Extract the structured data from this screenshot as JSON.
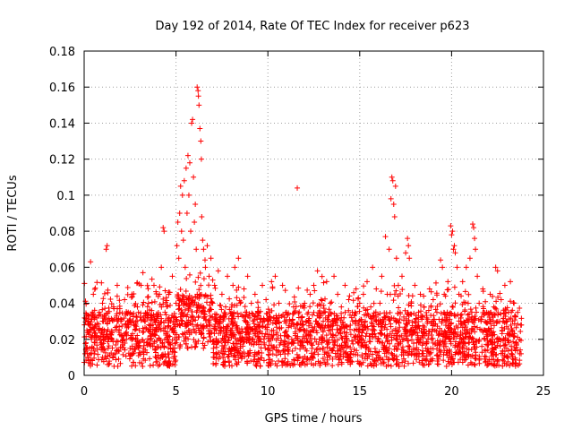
{
  "chart_data": {
    "type": "scatter",
    "title": "Day 192 of 2014, Rate Of TEC Index for receiver p623",
    "xlabel": "GPS time / hours",
    "ylabel": "ROTI / TECUs",
    "xlim": [
      0,
      25
    ],
    "ylim": [
      0,
      0.18
    ],
    "xticks": [
      0,
      5,
      10,
      15,
      20,
      25
    ],
    "xtick_labels": [
      "0",
      "5",
      "10",
      "15",
      "20",
      "25"
    ],
    "yticks": [
      0,
      0.02,
      0.04,
      0.06,
      0.08,
      0.1,
      0.12,
      0.14,
      0.16,
      0.18
    ],
    "ytick_labels": [
      "0",
      "0.02",
      "0.04",
      "0.06",
      "0.08",
      "0.1",
      "0.12",
      "0.14",
      "0.16",
      "0.18"
    ],
    "grid": true,
    "marker": "+",
    "marker_color": "#ff0000",
    "series": [
      {
        "name": "ROTI",
        "points": [
          [
            0.05,
            0.012
          ],
          [
            0.1,
            0.018
          ],
          [
            0.15,
            0.025
          ],
          [
            0.2,
            0.01
          ],
          [
            0.25,
            0.03
          ],
          [
            0.3,
            0.015
          ],
          [
            0.35,
            0.063
          ],
          [
            0.4,
            0.02
          ],
          [
            0.45,
            0.035
          ],
          [
            0.5,
            0.045
          ],
          [
            0.55,
            0.012
          ],
          [
            0.6,
            0.028
          ],
          [
            0.7,
            0.022
          ],
          [
            0.8,
            0.033
          ],
          [
            0.9,
            0.018
          ],
          [
            1.0,
            0.04
          ],
          [
            1.1,
            0.025
          ],
          [
            1.2,
            0.07
          ],
          [
            1.25,
            0.072
          ],
          [
            1.3,
            0.015
          ],
          [
            1.4,
            0.03
          ],
          [
            1.5,
            0.02
          ],
          [
            1.6,
            0.038
          ],
          [
            1.7,
            0.012
          ],
          [
            1.8,
            0.05
          ],
          [
            1.9,
            0.025
          ],
          [
            2.0,
            0.03
          ],
          [
            2.1,
            0.018
          ],
          [
            2.2,
            0.042
          ],
          [
            2.3,
            0.02
          ],
          [
            2.4,
            0.035
          ],
          [
            2.5,
            0.015
          ],
          [
            2.6,
            0.045
          ],
          [
            2.7,
            0.028
          ],
          [
            2.8,
            0.02
          ],
          [
            2.9,
            0.038
          ],
          [
            3.0,
            0.025
          ],
          [
            3.1,
            0.05
          ],
          [
            3.2,
            0.057
          ],
          [
            3.3,
            0.03
          ],
          [
            3.4,
            0.018
          ],
          [
            3.5,
            0.04
          ],
          [
            3.6,
            0.022
          ],
          [
            3.7,
            0.032
          ],
          [
            3.8,
            0.05
          ],
          [
            3.9,
            0.015
          ],
          [
            4.0,
            0.028
          ],
          [
            4.1,
            0.045
          ],
          [
            4.2,
            0.06
          ],
          [
            4.3,
            0.082
          ],
          [
            4.35,
            0.08
          ],
          [
            4.4,
            0.035
          ],
          [
            4.5,
            0.02
          ],
          [
            4.6,
            0.045
          ],
          [
            4.7,
            0.03
          ],
          [
            4.8,
            0.055
          ],
          [
            4.9,
            0.025
          ],
          [
            5.0,
            0.04
          ],
          [
            5.05,
            0.072
          ],
          [
            5.1,
            0.085
          ],
          [
            5.15,
            0.065
          ],
          [
            5.2,
            0.09
          ],
          [
            5.25,
            0.105
          ],
          [
            5.3,
            0.08
          ],
          [
            5.35,
            0.1
          ],
          [
            5.4,
            0.075
          ],
          [
            5.45,
            0.108
          ],
          [
            5.5,
            0.06
          ],
          [
            5.55,
            0.115
          ],
          [
            5.6,
            0.09
          ],
          [
            5.65,
            0.122
          ],
          [
            5.7,
            0.1
          ],
          [
            5.75,
            0.118
          ],
          [
            5.8,
            0.08
          ],
          [
            5.85,
            0.14
          ],
          [
            5.9,
            0.142
          ],
          [
            5.95,
            0.11
          ],
          [
            6.0,
            0.085
          ],
          [
            6.05,
            0.095
          ],
          [
            6.1,
            0.07
          ],
          [
            6.15,
            0.16
          ],
          [
            6.2,
            0.158
          ],
          [
            6.22,
            0.155
          ],
          [
            6.25,
            0.15
          ],
          [
            6.3,
            0.137
          ],
          [
            6.35,
            0.13
          ],
          [
            6.38,
            0.12
          ],
          [
            6.4,
            0.088
          ],
          [
            6.45,
            0.075
          ],
          [
            6.5,
            0.07
          ],
          [
            6.6,
            0.06
          ],
          [
            6.7,
            0.072
          ],
          [
            6.8,
            0.055
          ],
          [
            6.9,
            0.065
          ],
          [
            7.0,
            0.04
          ],
          [
            7.1,
            0.05
          ],
          [
            7.2,
            0.03
          ],
          [
            7.3,
            0.058
          ],
          [
            7.4,
            0.025
          ],
          [
            7.5,
            0.045
          ],
          [
            7.6,
            0.02
          ],
          [
            7.7,
            0.038
          ],
          [
            7.8,
            0.055
          ],
          [
            7.9,
            0.015
          ],
          [
            8.0,
            0.03
          ],
          [
            8.1,
            0.05
          ],
          [
            8.2,
            0.06
          ],
          [
            8.3,
            0.025
          ],
          [
            8.4,
            0.065
          ],
          [
            8.5,
            0.04
          ],
          [
            8.6,
            0.02
          ],
          [
            8.7,
            0.048
          ],
          [
            8.8,
            0.03
          ],
          [
            8.9,
            0.055
          ],
          [
            9.0,
            0.018
          ],
          [
            9.1,
            0.04
          ],
          [
            9.2,
            0.025
          ],
          [
            9.3,
            0.045
          ],
          [
            9.4,
            0.012
          ],
          [
            9.5,
            0.035
          ],
          [
            9.6,
            0.02
          ],
          [
            9.7,
            0.05
          ],
          [
            9.8,
            0.03
          ],
          [
            9.9,
            0.042
          ],
          [
            10.0,
            0.015
          ],
          [
            10.1,
            0.035
          ],
          [
            10.2,
            0.052
          ],
          [
            10.3,
            0.025
          ],
          [
            10.4,
            0.055
          ],
          [
            10.5,
            0.03
          ],
          [
            10.6,
            0.04
          ],
          [
            10.7,
            0.018
          ],
          [
            10.8,
            0.05
          ],
          [
            10.9,
            0.022
          ],
          [
            11.0,
            0.035
          ],
          [
            11.1,
            0.012
          ],
          [
            11.2,
            0.03
          ],
          [
            11.3,
            0.02
          ],
          [
            11.4,
            0.038
          ],
          [
            11.5,
            0.015
          ],
          [
            11.6,
            0.104
          ],
          [
            11.7,
            0.025
          ],
          [
            11.8,
            0.032
          ],
          [
            11.9,
            0.018
          ],
          [
            12.0,
            0.04
          ],
          [
            12.1,
            0.022
          ],
          [
            12.2,
            0.035
          ],
          [
            12.3,
            0.045
          ],
          [
            12.4,
            0.015
          ],
          [
            12.5,
            0.05
          ],
          [
            12.6,
            0.03
          ],
          [
            12.7,
            0.058
          ],
          [
            12.8,
            0.02
          ],
          [
            12.9,
            0.042
          ],
          [
            13.0,
            0.025
          ],
          [
            13.1,
            0.035
          ],
          [
            13.2,
            0.052
          ],
          [
            13.3,
            0.018
          ],
          [
            13.4,
            0.04
          ],
          [
            13.5,
            0.03
          ],
          [
            13.6,
            0.055
          ],
          [
            13.7,
            0.022
          ],
          [
            13.8,
            0.045
          ],
          [
            13.9,
            0.015
          ],
          [
            14.0,
            0.038
          ],
          [
            14.1,
            0.028
          ],
          [
            14.2,
            0.05
          ],
          [
            14.3,
            0.02
          ],
          [
            14.4,
            0.042
          ],
          [
            14.5,
            0.012
          ],
          [
            14.6,
            0.035
          ],
          [
            14.7,
            0.025
          ],
          [
            14.8,
            0.048
          ],
          [
            14.9,
            0.018
          ],
          [
            15.0,
            0.04
          ],
          [
            15.1,
            0.022
          ],
          [
            15.2,
            0.045
          ],
          [
            15.3,
            0.03
          ],
          [
            15.4,
            0.052
          ],
          [
            15.5,
            0.015
          ],
          [
            15.6,
            0.038
          ],
          [
            15.7,
            0.06
          ],
          [
            15.8,
            0.025
          ],
          [
            15.9,
            0.048
          ],
          [
            16.0,
            0.02
          ],
          [
            16.1,
            0.04
          ],
          [
            16.2,
            0.055
          ],
          [
            16.3,
            0.03
          ],
          [
            16.4,
            0.077
          ],
          [
            16.5,
            0.045
          ],
          [
            16.6,
            0.07
          ],
          [
            16.7,
            0.098
          ],
          [
            16.75,
            0.11
          ],
          [
            16.8,
            0.108
          ],
          [
            16.85,
            0.095
          ],
          [
            16.9,
            0.088
          ],
          [
            16.95,
            0.105
          ],
          [
            17.0,
            0.065
          ],
          [
            17.1,
            0.05
          ],
          [
            17.2,
            0.035
          ],
          [
            17.3,
            0.055
          ],
          [
            17.4,
            0.02
          ],
          [
            17.5,
            0.068
          ],
          [
            17.6,
            0.076
          ],
          [
            17.65,
            0.072
          ],
          [
            17.7,
            0.065
          ],
          [
            17.8,
            0.04
          ],
          [
            17.9,
            0.025
          ],
          [
            18.0,
            0.05
          ],
          [
            18.1,
            0.018
          ],
          [
            18.2,
            0.035
          ],
          [
            18.3,
            0.045
          ],
          [
            18.4,
            0.022
          ],
          [
            18.5,
            0.038
          ],
          [
            18.6,
            0.015
          ],
          [
            18.7,
            0.03
          ],
          [
            18.8,
            0.048
          ],
          [
            18.9,
            0.02
          ],
          [
            19.0,
            0.042
          ],
          [
            19.1,
            0.025
          ],
          [
            19.2,
            0.035
          ],
          [
            19.3,
            0.018
          ],
          [
            19.4,
            0.064
          ],
          [
            19.5,
            0.06
          ],
          [
            19.6,
            0.045
          ],
          [
            19.7,
            0.03
          ],
          [
            19.8,
            0.052
          ],
          [
            19.9,
            0.02
          ],
          [
            19.95,
            0.083
          ],
          [
            20.0,
            0.078
          ],
          [
            20.05,
            0.08
          ],
          [
            20.1,
            0.07
          ],
          [
            20.15,
            0.072
          ],
          [
            20.2,
            0.068
          ],
          [
            20.3,
            0.06
          ],
          [
            20.4,
            0.045
          ],
          [
            20.5,
            0.03
          ],
          [
            20.6,
            0.052
          ],
          [
            20.7,
            0.025
          ],
          [
            20.8,
            0.06
          ],
          [
            20.9,
            0.04
          ],
          [
            21.0,
            0.065
          ],
          [
            21.1,
            0.035
          ],
          [
            21.15,
            0.084
          ],
          [
            21.2,
            0.082
          ],
          [
            21.25,
            0.076
          ],
          [
            21.3,
            0.07
          ],
          [
            21.4,
            0.055
          ],
          [
            21.5,
            0.04
          ],
          [
            21.6,
            0.03
          ],
          [
            21.7,
            0.048
          ],
          [
            21.8,
            0.02
          ],
          [
            21.9,
            0.035
          ],
          [
            22.0,
            0.025
          ],
          [
            22.1,
            0.045
          ],
          [
            22.2,
            0.015
          ],
          [
            22.3,
            0.038
          ],
          [
            22.4,
            0.06
          ],
          [
            22.5,
            0.058
          ],
          [
            22.6,
            0.02
          ],
          [
            22.7,
            0.042
          ],
          [
            22.8,
            0.03
          ],
          [
            22.9,
            0.05
          ],
          [
            23.0,
            0.015
          ],
          [
            23.1,
            0.035
          ],
          [
            23.2,
            0.052
          ],
          [
            23.3,
            0.025
          ],
          [
            23.4,
            0.04
          ],
          [
            23.5,
            0.018
          ],
          [
            23.6,
            0.035
          ],
          [
            23.7,
            0.012
          ],
          [
            23.8,
            0.028
          ]
        ]
      }
    ]
  }
}
